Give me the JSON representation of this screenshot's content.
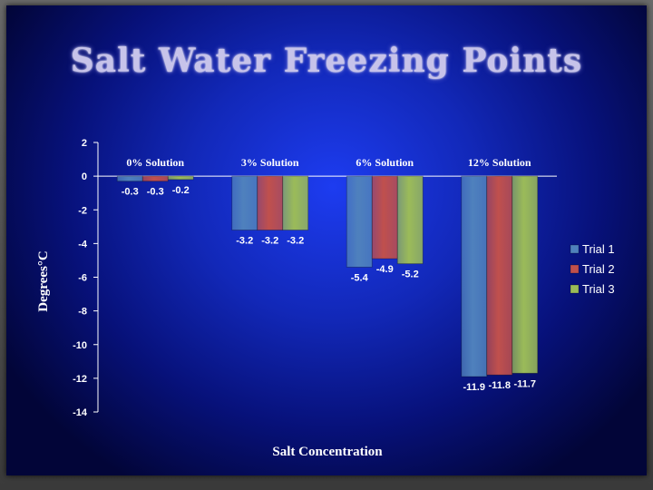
{
  "slide": {
    "title": "Salt Water Freezing Points"
  },
  "colors": {
    "trial1": "#4f81bd",
    "trial2": "#c0504d",
    "trial3": "#9bbb59",
    "axis": "#ffffff",
    "background": "#1228b8"
  },
  "chart_data": {
    "type": "bar",
    "title": "Salt Water Freezing Points",
    "xlabel": "Salt Concentration",
    "ylabel": "Degrees°C",
    "categories": [
      "0% Solution",
      "3% Solution",
      "6% Solution",
      "12% Solution"
    ],
    "series": [
      {
        "name": "Trial 1",
        "values": [
          -0.3,
          -3.2,
          -5.4,
          -11.9
        ],
        "labels": [
          "-0.3",
          "-3.2",
          "-5.4",
          "-11.9"
        ]
      },
      {
        "name": "Trial 2",
        "values": [
          -0.3,
          -3.2,
          -4.9,
          -11.8
        ],
        "labels": [
          "-0.3",
          "-3.2",
          "-4.9",
          "-11.8"
        ]
      },
      {
        "name": "Trial 3",
        "values": [
          -0.2,
          -3.2,
          -5.2,
          -11.7
        ],
        "labels": [
          "-0.2",
          "-3.2",
          "-5.2",
          "-11.7"
        ]
      }
    ],
    "yticks": [
      2,
      0,
      -2,
      -4,
      -6,
      -8,
      -10,
      -12,
      -14
    ],
    "ylim": [
      -14,
      2
    ],
    "legend_position": "right",
    "category_label_position": "top"
  }
}
